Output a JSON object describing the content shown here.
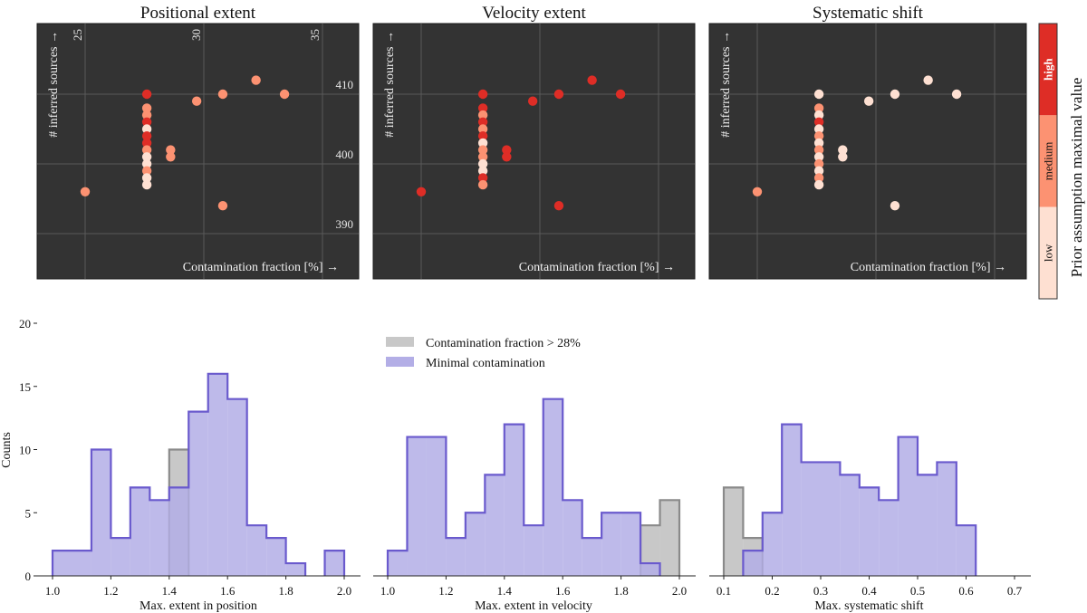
{
  "colors": {
    "panel_bg": "#333333",
    "grid": "#5a5a5a",
    "low": "#fee0d2",
    "medium": "#fc9272",
    "high": "#de2d26",
    "hist_fill": "#b3aee6",
    "hist_edge": "#6a5acd",
    "gray_fill": "#c8c8c8",
    "gray_edge": "#8a8a8a"
  },
  "colorbar": {
    "title": "Prior assumption maximal value",
    "levels": [
      {
        "key": "low",
        "label": "low"
      },
      {
        "key": "medium",
        "label": "medium"
      },
      {
        "key": "high",
        "label": "high"
      }
    ]
  },
  "legend": {
    "items": [
      {
        "key": "gray",
        "label": "Contamination fraction > 28%"
      },
      {
        "key": "purple",
        "label": "Minimal contamination"
      }
    ]
  },
  "chart_data": [
    {
      "type": "scatter",
      "title": "Positional extent",
      "xlabel": "Contamination fraction [%] →",
      "ylabel": "# inferred sources →",
      "xticks": [
        25,
        30,
        35
      ],
      "yticks": [
        390,
        400,
        410
      ],
      "xlim": [
        24,
        37.3
      ],
      "ylim": [
        386.5,
        414.5
      ],
      "points": [
        {
          "x": 27.6,
          "y": 410,
          "c": "high"
        },
        {
          "x": 27.6,
          "y": 408,
          "c": "medium"
        },
        {
          "x": 27.6,
          "y": 407,
          "c": "medium"
        },
        {
          "x": 27.6,
          "y": 406,
          "c": "high"
        },
        {
          "x": 27.6,
          "y": 405,
          "c": "low"
        },
        {
          "x": 27.6,
          "y": 404,
          "c": "high"
        },
        {
          "x": 27.6,
          "y": 403,
          "c": "high"
        },
        {
          "x": 27.6,
          "y": 402,
          "c": "medium"
        },
        {
          "x": 27.6,
          "y": 401,
          "c": "low"
        },
        {
          "x": 27.6,
          "y": 400,
          "c": "low"
        },
        {
          "x": 27.6,
          "y": 399,
          "c": "medium"
        },
        {
          "x": 27.6,
          "y": 398,
          "c": "low"
        },
        {
          "x": 27.6,
          "y": 397,
          "c": "low"
        },
        {
          "x": 28.6,
          "y": 402,
          "c": "medium"
        },
        {
          "x": 28.6,
          "y": 401,
          "c": "medium"
        },
        {
          "x": 25.0,
          "y": 396,
          "c": "medium"
        },
        {
          "x": 29.7,
          "y": 409,
          "c": "medium"
        },
        {
          "x": 30.8,
          "y": 410,
          "c": "medium"
        },
        {
          "x": 32.2,
          "y": 412,
          "c": "medium"
        },
        {
          "x": 33.4,
          "y": 410,
          "c": "medium"
        },
        {
          "x": 30.8,
          "y": 394,
          "c": "medium"
        }
      ]
    },
    {
      "type": "scatter",
      "title": "Velocity extent",
      "xlabel": "Contamination fraction [%] →",
      "ylabel": "# inferred sources →",
      "xticks": [
        25,
        30,
        35
      ],
      "yticks": [
        390,
        400,
        410
      ],
      "xlim": [
        24,
        37.3
      ],
      "ylim": [
        386.5,
        414.5
      ],
      "points": [
        {
          "x": 27.6,
          "y": 410,
          "c": "high"
        },
        {
          "x": 27.6,
          "y": 408,
          "c": "high"
        },
        {
          "x": 27.6,
          "y": 407,
          "c": "medium"
        },
        {
          "x": 27.6,
          "y": 406,
          "c": "high"
        },
        {
          "x": 27.6,
          "y": 405,
          "c": "medium"
        },
        {
          "x": 27.6,
          "y": 404,
          "c": "high"
        },
        {
          "x": 27.6,
          "y": 403,
          "c": "low"
        },
        {
          "x": 27.6,
          "y": 402,
          "c": "medium"
        },
        {
          "x": 27.6,
          "y": 401,
          "c": "medium"
        },
        {
          "x": 27.6,
          "y": 400,
          "c": "low"
        },
        {
          "x": 27.6,
          "y": 399,
          "c": "low"
        },
        {
          "x": 27.6,
          "y": 398,
          "c": "high"
        },
        {
          "x": 27.6,
          "y": 397,
          "c": "medium"
        },
        {
          "x": 28.6,
          "y": 402,
          "c": "high"
        },
        {
          "x": 28.6,
          "y": 401,
          "c": "high"
        },
        {
          "x": 25.0,
          "y": 396,
          "c": "high"
        },
        {
          "x": 29.7,
          "y": 409,
          "c": "high"
        },
        {
          "x": 30.8,
          "y": 410,
          "c": "high"
        },
        {
          "x": 32.2,
          "y": 412,
          "c": "high"
        },
        {
          "x": 33.4,
          "y": 410,
          "c": "high"
        },
        {
          "x": 30.8,
          "y": 394,
          "c": "high"
        }
      ]
    },
    {
      "type": "scatter",
      "title": "Systematic shift",
      "xlabel": "Contamination fraction [%] →",
      "ylabel": "# inferred sources →",
      "xticks": [
        25,
        30,
        35
      ],
      "yticks": [
        390,
        400,
        410
      ],
      "xlim": [
        24,
        37.3
      ],
      "ylim": [
        386.5,
        414.5
      ],
      "points": [
        {
          "x": 27.6,
          "y": 410,
          "c": "low"
        },
        {
          "x": 27.6,
          "y": 408,
          "c": "medium"
        },
        {
          "x": 27.6,
          "y": 407,
          "c": "low"
        },
        {
          "x": 27.6,
          "y": 406,
          "c": "high"
        },
        {
          "x": 27.6,
          "y": 405,
          "c": "low"
        },
        {
          "x": 27.6,
          "y": 404,
          "c": "medium"
        },
        {
          "x": 27.6,
          "y": 403,
          "c": "low"
        },
        {
          "x": 27.6,
          "y": 402,
          "c": "medium"
        },
        {
          "x": 27.6,
          "y": 401,
          "c": "low"
        },
        {
          "x": 27.6,
          "y": 400,
          "c": "medium"
        },
        {
          "x": 27.6,
          "y": 399,
          "c": "low"
        },
        {
          "x": 27.6,
          "y": 398,
          "c": "medium"
        },
        {
          "x": 27.6,
          "y": 397,
          "c": "low"
        },
        {
          "x": 28.6,
          "y": 402,
          "c": "low"
        },
        {
          "x": 28.6,
          "y": 401,
          "c": "low"
        },
        {
          "x": 25.0,
          "y": 396,
          "c": "medium"
        },
        {
          "x": 29.7,
          "y": 409,
          "c": "low"
        },
        {
          "x": 30.8,
          "y": 410,
          "c": "low"
        },
        {
          "x": 32.2,
          "y": 412,
          "c": "low"
        },
        {
          "x": 33.4,
          "y": 410,
          "c": "low"
        },
        {
          "x": 30.8,
          "y": 394,
          "c": "low"
        }
      ]
    },
    {
      "type": "bar",
      "histogram": true,
      "xlabel": "Max. extent in position",
      "ylabel": "Counts",
      "xticks": [
        "1.0",
        "1.2",
        "1.4",
        "1.6",
        "1.8",
        "2.0"
      ],
      "yticks": [
        0,
        5,
        10,
        15,
        20
      ],
      "xlim": [
        1.0,
        2.0
      ],
      "ylim": [
        0,
        20
      ],
      "bins": 15,
      "series": [
        {
          "name": "Contamination fraction > 28%",
          "key": "gray",
          "values": [
            0,
            0,
            0,
            0,
            0,
            0,
            10,
            0,
            0,
            0,
            0,
            0,
            0,
            0,
            0
          ]
        },
        {
          "name": "Minimal contamination",
          "key": "purple",
          "values": [
            2,
            2,
            10,
            3,
            7,
            6,
            7,
            13,
            16,
            14,
            4,
            3,
            1,
            0,
            2
          ]
        }
      ]
    },
    {
      "type": "bar",
      "histogram": true,
      "xlabel": "Max. extent in velocity",
      "ylabel": "",
      "xticks": [
        "1.0",
        "1.2",
        "1.4",
        "1.6",
        "1.8",
        "2.0"
      ],
      "yticks": [],
      "xlim": [
        1.0,
        2.0
      ],
      "ylim": [
        0,
        20
      ],
      "bins": 15,
      "series": [
        {
          "name": "Contamination fraction > 28%",
          "key": "gray",
          "values": [
            0,
            0,
            0,
            0,
            0,
            0,
            0,
            0,
            0,
            0,
            0,
            0,
            0,
            4,
            6
          ]
        },
        {
          "name": "Minimal contamination",
          "key": "purple",
          "values": [
            2,
            11,
            11,
            3,
            5,
            8,
            12,
            4,
            14,
            6,
            3,
            5,
            5,
            1,
            0
          ]
        }
      ]
    },
    {
      "type": "bar",
      "histogram": true,
      "xlabel": "Max. systematic shift",
      "ylabel": "",
      "xticks": [
        "0.1",
        "0.2",
        "0.3",
        "0.4",
        "0.5",
        "0.6",
        "0.7"
      ],
      "yticks": [],
      "xlim": [
        0.1,
        0.7
      ],
      "ylim": [
        0,
        20
      ],
      "bins": 15,
      "series": [
        {
          "name": "Contamination fraction > 28%",
          "key": "gray",
          "values": [
            7,
            3,
            0,
            0,
            0,
            0,
            0,
            0,
            0,
            0,
            0,
            0,
            0,
            0,
            0
          ]
        },
        {
          "name": "Minimal contamination",
          "key": "purple",
          "values": [
            0,
            2,
            5,
            12,
            9,
            9,
            8,
            7,
            6,
            11,
            8,
            9,
            4,
            0,
            0
          ]
        }
      ]
    }
  ]
}
